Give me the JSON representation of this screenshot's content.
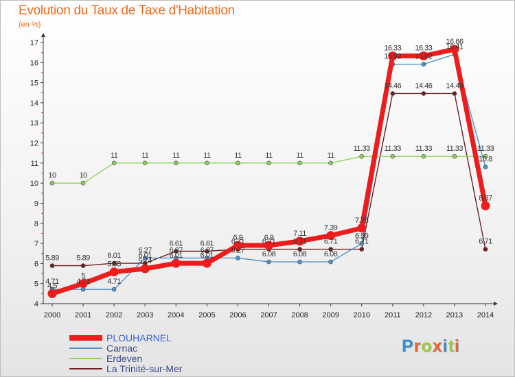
{
  "header": {
    "title": "Evolution du Taux de Taxe d'Habitation",
    "subtitle": "(en %)"
  },
  "brand": {
    "text": "Proxiti",
    "colors": [
      "#3a8ccf",
      "#e8622a",
      "#9bcb3c",
      "#e8622a",
      "#3a8ccf",
      "#9bcb3c",
      "#e8622a"
    ]
  },
  "chart_data": {
    "type": "line",
    "title": "Evolution du Taux de Taxe d'Habitation",
    "ylabel": "(en %)",
    "xlabel": "",
    "ylim": [
      4,
      17
    ],
    "yticks": [
      "4",
      "5",
      "6",
      "7",
      "8",
      "9",
      "10",
      "11",
      "12",
      "13",
      "14",
      "15",
      "16",
      "17"
    ],
    "categories": [
      "2000",
      "2001",
      "2002",
      "2003",
      "2004",
      "2005",
      "2006",
      "2007",
      "2008",
      "2009",
      "2010",
      "2011",
      "2012",
      "2013",
      "2014"
    ],
    "grid": false,
    "legend_position": "bottom-left",
    "series": [
      {
        "name": "PLOUHARNEL",
        "color": "#ee1c1c",
        "values": [
          4.5,
          5,
          5.58,
          5.74,
          6.01,
          6.01,
          6.9,
          6.9,
          7.11,
          7.39,
          7.76,
          16.33,
          16.33,
          16.66,
          8.87
        ],
        "labels": [
          "4.5",
          "5",
          "5.58",
          "5.74",
          "6.01",
          "6.01",
          "6.9",
          "6.9",
          "7.11",
          "7.39",
          "7.76",
          "16.33",
          "16.33",
          "16.66",
          "8.87"
        ]
      },
      {
        "name": "Carnac",
        "color": "#4f93cf",
        "values": [
          4.71,
          4.71,
          4.71,
          6.27,
          6.27,
          6.27,
          6.27,
          6.08,
          6.08,
          6.08,
          6.99,
          15.92,
          15.92,
          16.41,
          10.8
        ],
        "labels": [
          "4.71",
          "4.71",
          "4.71",
          "6.27",
          "6.27",
          "6.27",
          "6.27",
          "6.08",
          "6.08",
          "6.08",
          "6.99",
          "15.92",
          "15.92",
          "16.41",
          "10.8"
        ]
      },
      {
        "name": "Erdeven",
        "color": "#8fd05a",
        "values": [
          10,
          10,
          11,
          11,
          11,
          11,
          11,
          11,
          11,
          11,
          11.33,
          11.33,
          11.33,
          11.33,
          11.33
        ],
        "labels": [
          "10",
          "10",
          "11",
          "11",
          "11",
          "11",
          "11",
          "11",
          "11",
          "11",
          "11.33",
          "11.33",
          "11.33",
          "11.33",
          "11.33"
        ]
      },
      {
        "name": "La Trinité-sur-Mer",
        "color": "#6b1f1f",
        "values": [
          5.89,
          5.89,
          6.01,
          6.01,
          6.61,
          6.61,
          6.71,
          6.71,
          6.71,
          6.71,
          6.71,
          14.46,
          14.46,
          14.46,
          6.71
        ],
        "labels": [
          "5.89",
          "5.89",
          "6.01",
          "6.01",
          "6.61",
          "6.61",
          "6.71",
          "6.71",
          "6.71",
          "6.71",
          "6.71",
          "14.46",
          "14.46",
          "14.46",
          "6.71"
        ]
      }
    ]
  }
}
